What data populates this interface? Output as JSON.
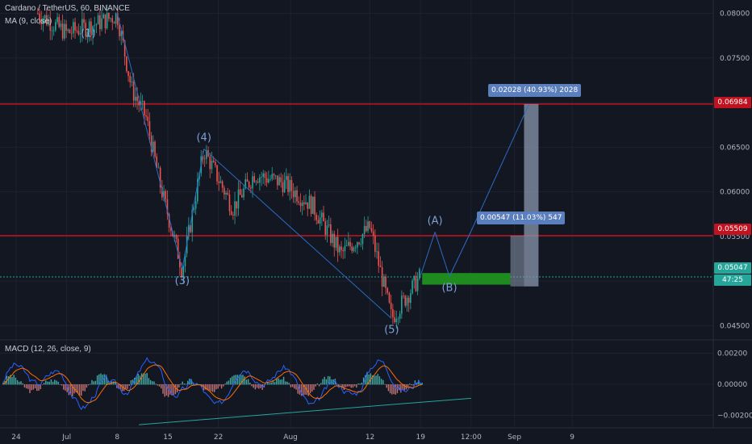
{
  "header": {
    "symbol_line": "Cardano / TetherUS, 60, BINANCE",
    "ma_line": "MA (9, close)",
    "macd_line": "MACD (12, 26, close, 9)"
  },
  "price_axis": {
    "ticks": [
      "0.08000",
      "0.07500",
      "0.07000",
      "0.06500",
      "0.06000",
      "0.05500",
      "0.05000",
      "0.04500"
    ],
    "current_price": "0.05047",
    "countdown": "47:25"
  },
  "macd_axis": {
    "ticks": [
      "0.00200",
      "0.00000",
      "−0.00200"
    ]
  },
  "time_axis": {
    "ticks": [
      "24",
      "Jul",
      "8",
      "15",
      "22",
      "Aug",
      "12",
      "19",
      "12:00",
      "Sep",
      "9"
    ]
  },
  "horizontal_levels": [
    {
      "price": 0.06984,
      "label": "0.06984",
      "color": "#c1121f"
    },
    {
      "price": 0.05509,
      "label": "0.05509",
      "color": "#c1121f"
    }
  ],
  "measures": [
    {
      "label": "0.02028 (40.93%) 2028"
    },
    {
      "label": "0.00547 (11.03%) 547"
    }
  ],
  "wave_labels": [
    "(1)",
    "(3)",
    "(4)",
    "(5)",
    "(A)",
    "(B)"
  ],
  "colors": {
    "background": "#131722",
    "bull": "#26a69a",
    "bear": "#ef5350",
    "wave_line": "#2b6cc4",
    "level_line": "#c1121f",
    "target_box": "#1f8b1f",
    "measure_box": "#8a97ad",
    "macd_line": "#2962ff",
    "signal_line": "#ff6d00",
    "trend_line": "#26a69a"
  },
  "chart_data": {
    "type": "candlestick",
    "title": "Cardano / TetherUS, 60, BINANCE",
    "y_axis": {
      "min": 0.0435,
      "max": 0.0815
    },
    "price_path": [
      {
        "x": "Jun 27",
        "price": 0.08
      },
      {
        "x": "Jul 1",
        "price": 0.0778
      },
      {
        "x": "Jul 5",
        "price": 0.0788
      },
      {
        "x": "Jul 8",
        "price": 0.0798
      },
      {
        "x": "Jul 10",
        "price": 0.0715
      },
      {
        "x": "Jul 12",
        "price": 0.0683
      },
      {
        "x": "Jul 14",
        "price": 0.0606
      },
      {
        "x": "Jul 17",
        "price": 0.0513
      },
      {
        "x": "Jul 20",
        "price": 0.0647
      },
      {
        "x": "Jul 24",
        "price": 0.0582
      },
      {
        "x": "Jul 27",
        "price": 0.062
      },
      {
        "x": "Jul 31",
        "price": 0.061
      },
      {
        "x": "Aug 4",
        "price": 0.0585
      },
      {
        "x": "Aug 8",
        "price": 0.053
      },
      {
        "x": "Aug 12",
        "price": 0.056
      },
      {
        "x": "Aug 15",
        "price": 0.0458
      },
      {
        "x": "Aug 19",
        "price": 0.0506
      }
    ],
    "elliott_waves": [
      {
        "label": "(1)",
        "x": "Jul 4",
        "price": 0.079
      },
      {
        "label": "(3)",
        "x": "Jul 17",
        "price": 0.0513
      },
      {
        "label": "(4)",
        "x": "Jul 20",
        "price": 0.0648
      },
      {
        "label": "(5)",
        "x": "Aug 15",
        "price": 0.0458
      },
      {
        "label": "(A)",
        "x": "Aug 21",
        "price": 0.0555
      },
      {
        "label": "(B)",
        "x": "Aug 23",
        "price": 0.0505
      }
    ],
    "projection": [
      {
        "x": "Aug 19",
        "price": 0.0506
      },
      {
        "x": "Aug 21",
        "price": 0.0555
      },
      {
        "x": "Aug 23",
        "price": 0.0505
      },
      {
        "x": "Aug 26",
        "price": 0.0556
      },
      {
        "x": "Sep 3",
        "price": 0.0698
      }
    ],
    "levels": [
      0.06984,
      0.05509
    ],
    "last_price": 0.05047,
    "macd": {
      "name": "MACD (12, 26, close, 9)",
      "y_axis": {
        "min": -0.0027,
        "max": 0.0027
      },
      "trendline": [
        {
          "x": "Jul 11",
          "value": -0.0026
        },
        {
          "x": "Aug 26",
          "value": -0.0009
        }
      ]
    }
  }
}
